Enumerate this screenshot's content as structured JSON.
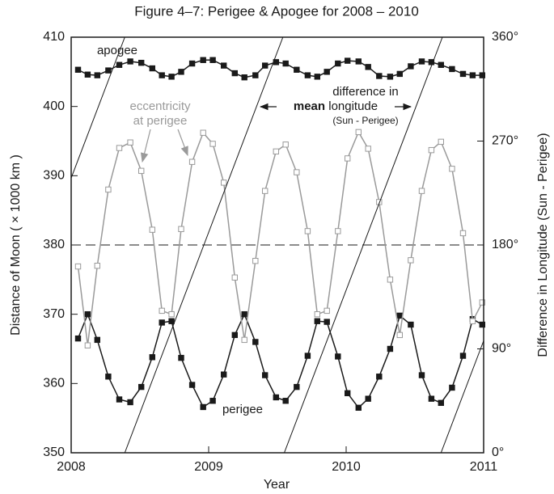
{
  "chart_data": {
    "type": "line",
    "title": "Figure 4–7:  Perigee & Apogee for 2008 – 2010",
    "x_label": "Year",
    "y_label": "Distance of Moon  ( × 1000 km )",
    "y2_label": "Difference in Longitude (Sun - Perigee)",
    "xlim": [
      2008,
      2011
    ],
    "xticks": [
      2008,
      2009,
      2010,
      2011
    ],
    "ylim": [
      350,
      410
    ],
    "yticks": [
      350,
      360,
      370,
      380,
      390,
      400,
      410
    ],
    "y2lim": [
      0,
      360
    ],
    "y2ticks": [
      {
        "value": 0,
        "label": "0°"
      },
      {
        "value": 90,
        "label": "90°"
      },
      {
        "value": 180,
        "label": "180°"
      },
      {
        "value": 270,
        "label": "270°"
      },
      {
        "value": 360,
        "label": "360°"
      }
    ],
    "reference_line": {
      "value": 380,
      "dash": true
    },
    "x": [
      2008.05,
      2008.12,
      2008.19,
      2008.27,
      2008.35,
      2008.43,
      2008.51,
      2008.59,
      2008.66,
      2008.73,
      2008.8,
      2008.88,
      2008.96,
      2009.03,
      2009.11,
      2009.19,
      2009.26,
      2009.34,
      2009.41,
      2009.49,
      2009.56,
      2009.64,
      2009.72,
      2009.79,
      2009.86,
      2009.94,
      2010.01,
      2010.09,
      2010.16,
      2010.24,
      2010.32,
      2010.39,
      2010.47,
      2010.55,
      2010.62,
      2010.69,
      2010.77,
      2010.85,
      2010.92,
      2010.99
    ],
    "series": [
      {
        "name": "apogee",
        "color": "#1a1a1a",
        "marker": "filled",
        "values": [
          405.3,
          404.6,
          404.5,
          405.2,
          406.0,
          406.5,
          406.3,
          405.5,
          404.5,
          404.3,
          405.0,
          406.2,
          406.7,
          406.7,
          405.9,
          404.8,
          404.2,
          404.5,
          405.9,
          406.4,
          406.2,
          405.3,
          404.5,
          404.3,
          405.0,
          406.2,
          406.6,
          406.5,
          405.7,
          404.4,
          404.3,
          404.7,
          405.8,
          406.5,
          406.4,
          406.0,
          405.4,
          404.7,
          404.5,
          404.5
        ]
      },
      {
        "name": "perigee",
        "color": "#1a1a1a",
        "marker": "filled",
        "values": [
          366.5,
          370.0,
          366.3,
          361.0,
          357.7,
          357.3,
          359.5,
          363.8,
          368.8,
          369.0,
          363.7,
          359.8,
          356.6,
          357.5,
          361.3,
          367.0,
          370.0,
          366.0,
          361.2,
          358.0,
          357.5,
          359.5,
          364.0,
          369.0,
          368.9,
          363.9,
          358.6,
          356.5,
          357.8,
          361.0,
          365.0,
          369.8,
          368.5,
          361.2,
          357.8,
          357.2,
          359.4,
          364.0,
          369.3,
          368.5
        ]
      },
      {
        "color": "#9a9a9a",
        "marker": "open",
        "values": [
          376.9,
          365.5,
          377.0,
          388.0,
          394.0,
          394.8,
          390.7,
          382.2,
          370.5,
          370.0,
          382.3,
          392.0,
          396.2,
          394.6,
          389.0,
          375.3,
          366.3,
          377.7,
          387.8,
          393.5,
          394.5,
          390.5,
          382.0,
          370.0,
          370.5,
          382.0,
          392.5,
          396.3,
          393.9,
          386.2,
          375.0,
          367.0,
          377.8,
          387.8,
          393.7,
          394.9,
          391.0,
          381.7,
          369.0,
          371.7
        ]
      },
      {
        "axis": "y2",
        "color": "#1a1a1a",
        "marker": "none",
        "x": [
          2008.0,
          2008.39,
          2008.39,
          2008.39,
          2009.54,
          2009.54,
          2009.55,
          2010.7,
          2010.7,
          2010.69,
          2011.0
        ],
        "values": [
          238,
          360,
          null,
          0,
          360,
          null,
          0,
          360,
          null,
          0,
          97
        ]
      }
    ],
    "annotations": {
      "eccentricity": [
        "eccentricity",
        "at perigee"
      ],
      "longitude": {
        "line1": "difference in",
        "bold": "mean",
        "rest": " longitude",
        "note": "(Sun - Perigee)"
      }
    }
  }
}
